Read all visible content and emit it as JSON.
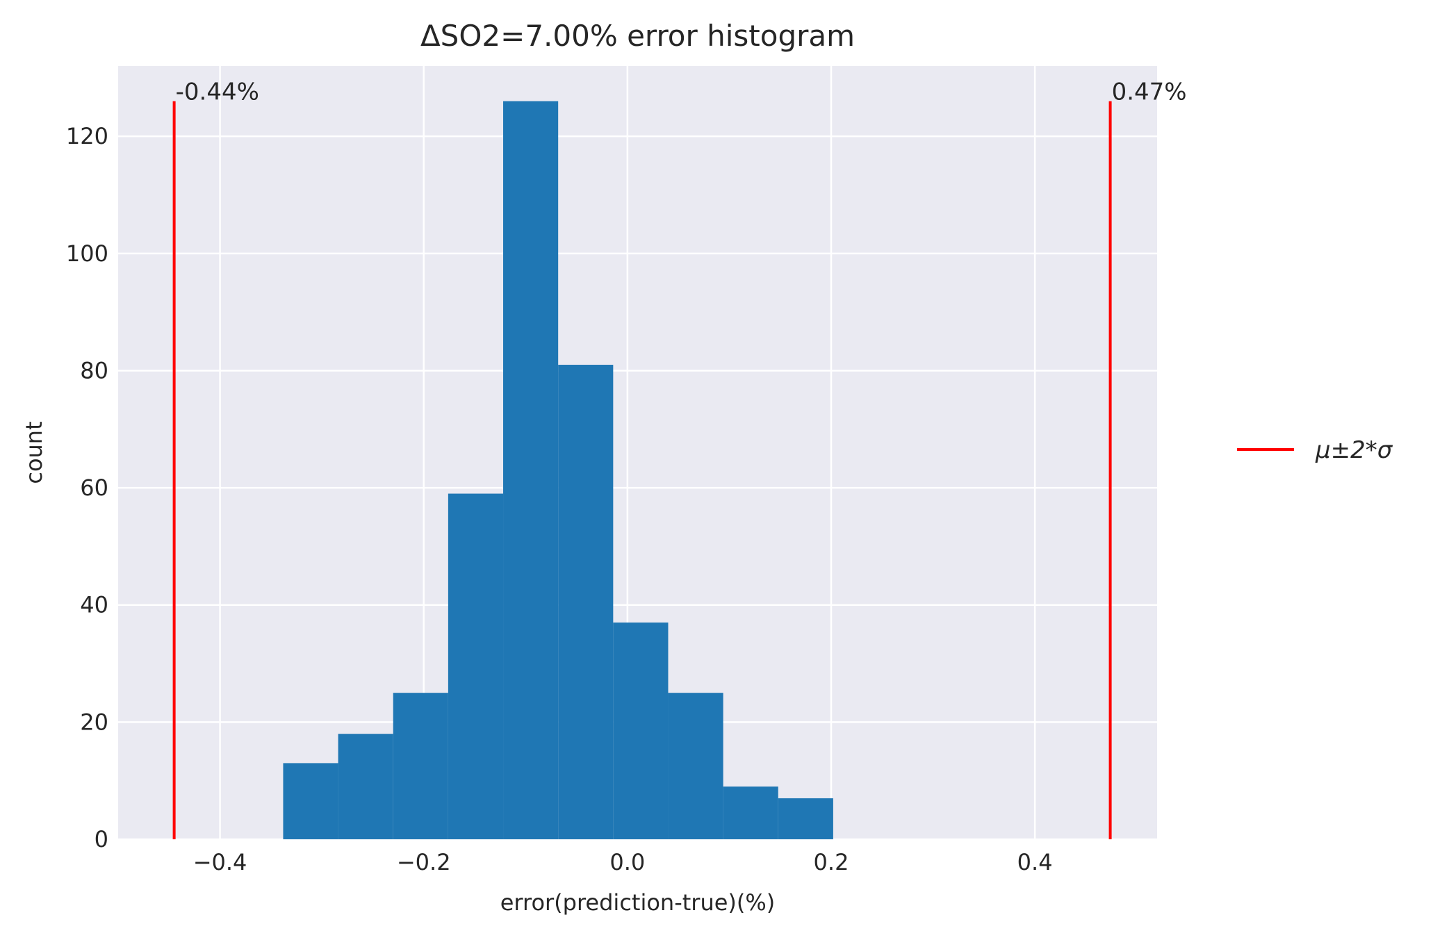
{
  "chart_data": {
    "type": "bar",
    "title": "ΔSO2=7.00% error histogram",
    "xlabel": "error(prediction-true)(%)",
    "ylabel": "count",
    "xlim": [
      -0.5,
      0.52
    ],
    "ylim": [
      0,
      132
    ],
    "xticks": [
      -0.4,
      -0.2,
      0.0,
      0.2,
      0.4
    ],
    "xtick_labels": [
      "−0.4",
      "−0.2",
      "0.0",
      "0.2",
      "0.4"
    ],
    "yticks": [
      0,
      20,
      40,
      60,
      80,
      100,
      120
    ],
    "ytick_labels": [
      "0",
      "20",
      "40",
      "60",
      "80",
      "100",
      "120"
    ],
    "bins": [
      {
        "x0": -0.338,
        "x1": -0.284,
        "count": 13
      },
      {
        "x0": -0.284,
        "x1": -0.23,
        "count": 18
      },
      {
        "x0": -0.23,
        "x1": -0.176,
        "count": 25
      },
      {
        "x0": -0.176,
        "x1": -0.122,
        "count": 59
      },
      {
        "x0": -0.122,
        "x1": -0.068,
        "count": 126
      },
      {
        "x0": -0.068,
        "x1": -0.014,
        "count": 81
      },
      {
        "x0": -0.014,
        "x1": 0.04,
        "count": 37
      },
      {
        "x0": 0.04,
        "x1": 0.094,
        "count": 25
      },
      {
        "x0": 0.094,
        "x1": 0.148,
        "count": 9
      },
      {
        "x0": 0.148,
        "x1": 0.202,
        "count": 7
      }
    ],
    "vlines": [
      {
        "x": -0.445,
        "ymax": 126,
        "label": "-0.44%"
      },
      {
        "x": 0.474,
        "ymax": 126,
        "label": "0.47%"
      }
    ],
    "legend": {
      "label": "μ±2*σ",
      "placement": "right-outside"
    },
    "grid": true,
    "colors": {
      "bar": "#1f77b4",
      "vline": "#ff0000",
      "background": "#eaeaf2",
      "grid": "#ffffff"
    }
  }
}
